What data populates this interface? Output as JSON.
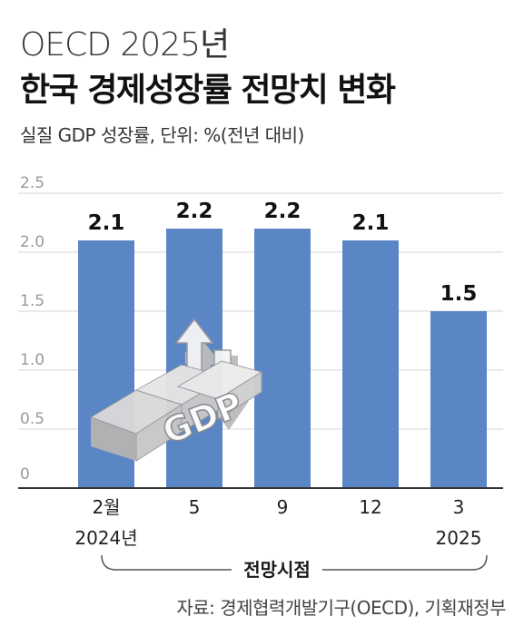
{
  "header": {
    "title_line1": "OECD 2025년",
    "title_line2": "한국 경제성장률 전망치 변화",
    "subtitle": "실질 GDP 성장률, 단위: %(전년 대비)"
  },
  "footer": {
    "source": "자료: 경제협력개발기구(OECD), 기획재정부"
  },
  "illustration": {
    "label": "GDP"
  },
  "colors": {
    "bar": "#5b86c5",
    "grid": "#d4d4d4",
    "axis": "#333333",
    "tick_text": "#9a9a9a"
  },
  "chart_data": {
    "type": "bar",
    "xlabel": "전망시점",
    "categories": [
      "2월\n2024년",
      "5",
      "9",
      "12",
      "3\n2025"
    ],
    "values": [
      2.1,
      2.2,
      2.2,
      2.1,
      1.5
    ],
    "value_labels": [
      "2.1",
      "2.2",
      "2.2",
      "2.1",
      "1.5"
    ],
    "yticks": [
      0,
      0.5,
      1.0,
      1.5,
      2.0,
      2.5
    ],
    "ytick_labels": [
      "0",
      "0.5",
      "1.0",
      "1.5",
      "2.0",
      "2.5"
    ],
    "ylim": [
      0,
      2.5
    ],
    "grid": true
  }
}
